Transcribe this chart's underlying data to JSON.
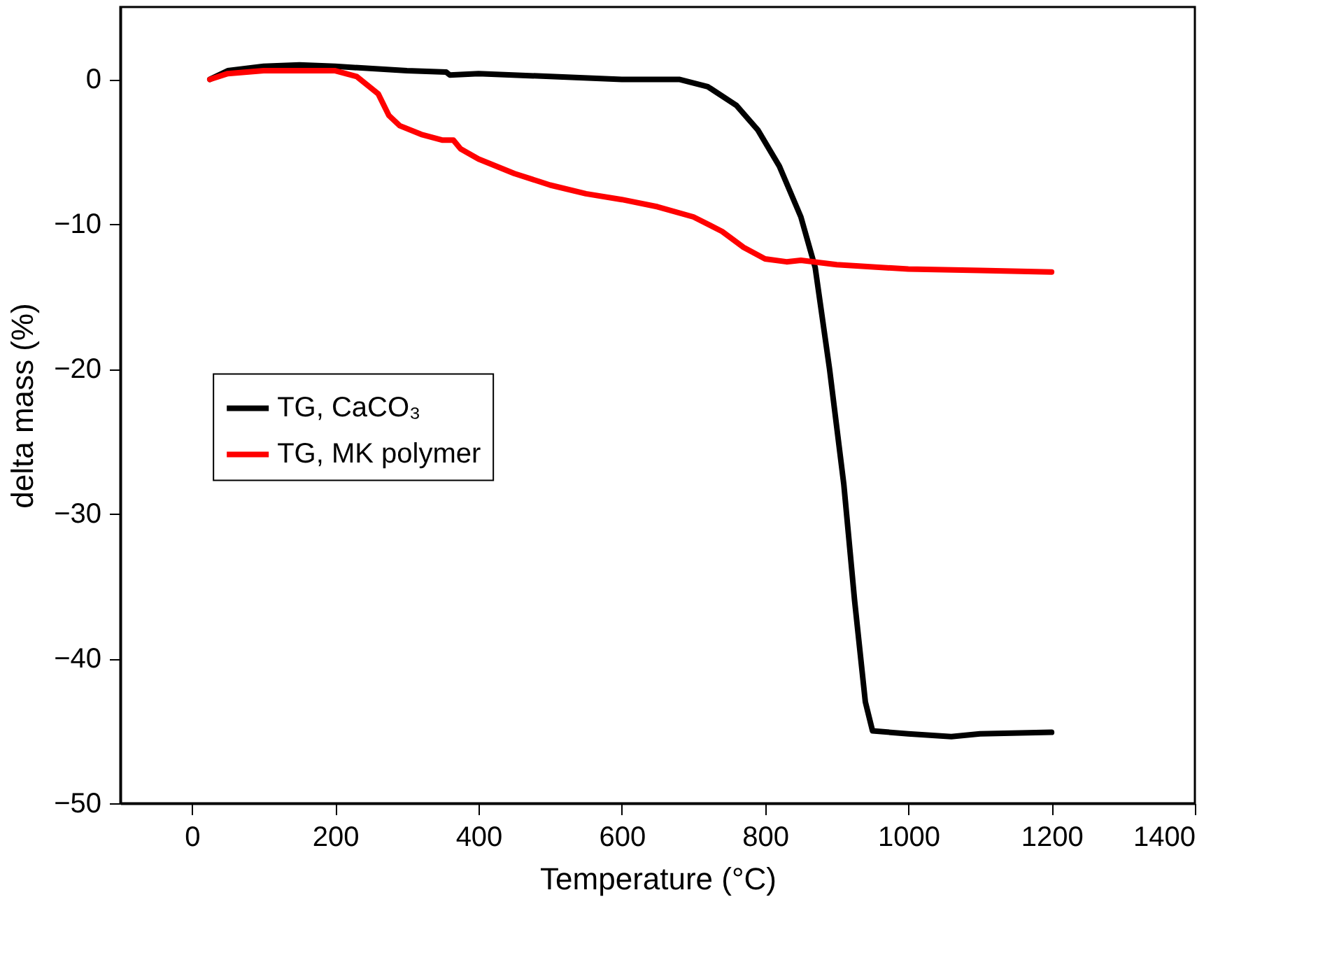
{
  "chart_data": {
    "type": "line",
    "xlabel": "Temperature (°C)",
    "ylabel": "delta mass (%)",
    "xlim": [
      -100,
      1400
    ],
    "xticks": [
      0,
      200,
      400,
      600,
      800,
      1000,
      1200,
      1400
    ],
    "ylim": [
      -50,
      5
    ],
    "yticks": [
      -50,
      -40,
      -30,
      -20,
      -10,
      0
    ],
    "grid": false,
    "legend": "left",
    "line_style": "solid",
    "marker": "none",
    "series": [
      {
        "name": "TG, CaCO₃",
        "color": "#000000",
        "x": [
          25,
          50,
          100,
          150,
          200,
          300,
          355,
          360,
          400,
          500,
          600,
          680,
          720,
          760,
          790,
          820,
          850,
          870,
          890,
          910,
          925,
          940,
          950,
          1000,
          1060,
          1100,
          1200
        ],
        "values": [
          0,
          0.6,
          0.9,
          1.0,
          0.9,
          0.6,
          0.5,
          0.3,
          0.4,
          0.2,
          0,
          0,
          -0.5,
          -1.8,
          -3.5,
          -6,
          -9.5,
          -13,
          -20,
          -28,
          -36,
          -43,
          -45,
          -45.2,
          -45.4,
          -45.2,
          -45.1
        ]
      },
      {
        "name": "TG, MK polymer",
        "color": "#ff0000",
        "x": [
          25,
          50,
          100,
          200,
          230,
          260,
          275,
          290,
          320,
          350,
          365,
          375,
          400,
          450,
          500,
          550,
          600,
          650,
          700,
          740,
          770,
          800,
          830,
          850,
          900,
          1000,
          1100,
          1200
        ],
        "values": [
          0,
          0.4,
          0.6,
          0.6,
          0.2,
          -1,
          -2.5,
          -3.2,
          -3.8,
          -4.2,
          -4.2,
          -4.8,
          -5.5,
          -6.5,
          -7.3,
          -7.9,
          -8.3,
          -8.8,
          -9.5,
          -10.5,
          -11.6,
          -12.4,
          -12.6,
          -12.5,
          -12.8,
          -13.1,
          -13.2,
          -13.3
        ]
      }
    ]
  }
}
